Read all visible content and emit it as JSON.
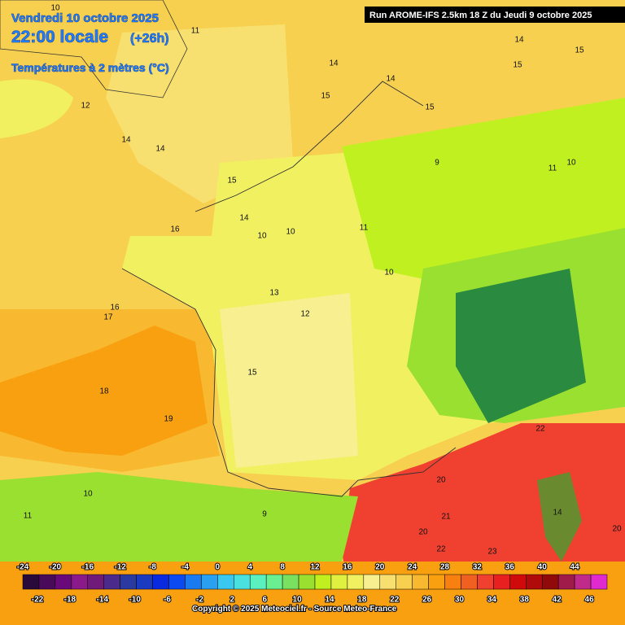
{
  "header": {
    "date": "Vendredi 10 octobre 2025",
    "time": "22:00 locale",
    "offset": "(+26h)",
    "variable": "Températures à 2 mètres (°C)",
    "run": "Run AROME-IFS 2.5km 18 Z du Jeudi 9 octobre 2025"
  },
  "map_labels": [
    "10",
    "11",
    "14",
    "15",
    "14",
    "14",
    "15",
    "15",
    "15",
    "16",
    "15",
    "14",
    "17",
    "16",
    "18",
    "19",
    "15",
    "10",
    "10",
    "11",
    "10",
    "12",
    "13",
    "9",
    "10",
    "11",
    "22",
    "21",
    "20",
    "22",
    "23",
    "20",
    "20",
    "14",
    "10",
    "11",
    "9",
    "12",
    "14",
    "14"
  ],
  "scale": {
    "top_labels": [
      -24,
      -20,
      -16,
      -12,
      -8,
      -4,
      0,
      4,
      8,
      12,
      16,
      20,
      24,
      28,
      32,
      36,
      40,
      44
    ],
    "bottom_labels": [
      -22,
      -18,
      -14,
      -10,
      -6,
      -2,
      2,
      6,
      10,
      14,
      18,
      22,
      26,
      30,
      34,
      38,
      42,
      46
    ],
    "colors": [
      "#2a0a3a",
      "#4a0a5a",
      "#6a0a7a",
      "#8a1a8a",
      "#701a7a",
      "#4a2a8a",
      "#2a3aa0",
      "#1a3ac0",
      "#0a2ae0",
      "#0a4af0",
      "#1a7af0",
      "#2aa0f0",
      "#3ac8f0",
      "#4ae0e0",
      "#5af0c0",
      "#6af090",
      "#7ae060",
      "#9ae030",
      "#c0f020",
      "#e0f040",
      "#f0f060",
      "#f8f090",
      "#f8e070",
      "#f8d050",
      "#f8b830",
      "#f8a010",
      "#f88010",
      "#f06020",
      "#f04030",
      "#e82020",
      "#d00a0a",
      "#b00a0a",
      "#900a0a",
      "#a01a4a",
      "#c02a8a",
      "#e02ad0"
    ]
  },
  "footer": {
    "credit": "Copyright © 2025 Meteociel.fr - Source Meteo-France"
  }
}
